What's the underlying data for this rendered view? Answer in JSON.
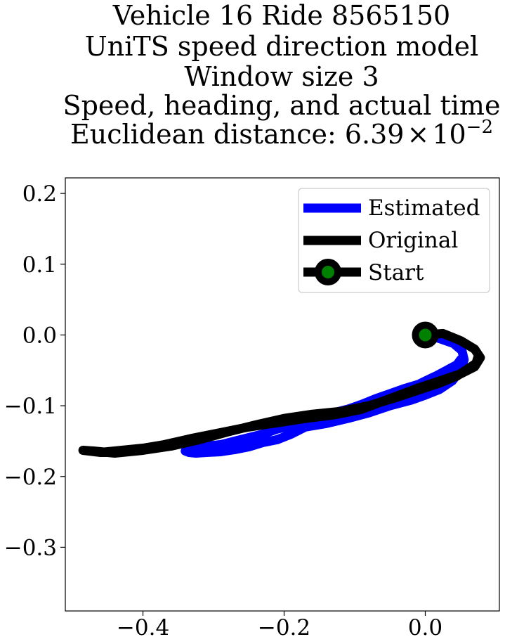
{
  "chart_data": {
    "type": "line",
    "title_lines": [
      "Vehicle 16 Ride 8565150",
      "UniTS speed direction model",
      "Window size 3",
      "Speed, heading, and actual time"
    ],
    "title_last_prefix": "Euclidean distance: ",
    "title_last_mantissa": "6.39",
    "title_last_times": "×",
    "title_last_base": "10",
    "title_last_exponent": "−2",
    "xlabel": "",
    "ylabel": "",
    "xlim": [
      -0.51,
      0.105
    ],
    "ylim": [
      -0.39,
      0.222
    ],
    "x_ticks": [
      -0.4,
      -0.2,
      0.0
    ],
    "x_tick_labels": [
      "−0.4",
      "−0.2",
      "0.0"
    ],
    "y_ticks": [
      0.2,
      0.1,
      0.0,
      -0.1,
      -0.2,
      -0.3
    ],
    "y_tick_labels": [
      "0.2",
      "0.1",
      "0.0",
      "−0.1",
      "−0.2",
      "−0.3"
    ],
    "grid": false,
    "legend_position": "top-right",
    "legend": [
      "Estimated",
      "Original",
      "Start"
    ],
    "series": [
      {
        "name": "Estimated",
        "color": "#0000ff",
        "x": [
          0.0,
          0.02,
          0.04,
          0.052,
          0.055,
          0.05,
          0.038,
          0.02,
          0.0,
          -0.02,
          -0.05,
          -0.08,
          -0.11,
          -0.14,
          -0.17,
          -0.19,
          -0.21,
          -0.23,
          -0.25,
          -0.27,
          -0.29,
          -0.31,
          -0.325,
          -0.335,
          -0.34,
          -0.33,
          -0.31,
          -0.29,
          -0.27,
          -0.25,
          -0.23,
          -0.21,
          -0.19,
          -0.17,
          -0.15,
          -0.13,
          -0.11,
          -0.09,
          -0.07,
          -0.05,
          -0.03,
          -0.01,
          0.0,
          0.015,
          0.03,
          0.045,
          0.05
        ],
        "y": [
          0.0,
          -0.005,
          -0.012,
          -0.022,
          -0.035,
          -0.05,
          -0.065,
          -0.077,
          -0.085,
          -0.092,
          -0.1,
          -0.11,
          -0.118,
          -0.125,
          -0.13,
          -0.14,
          -0.148,
          -0.152,
          -0.158,
          -0.162,
          -0.165,
          -0.166,
          -0.167,
          -0.166,
          -0.164,
          -0.16,
          -0.157,
          -0.155,
          -0.15,
          -0.145,
          -0.14,
          -0.133,
          -0.128,
          -0.122,
          -0.115,
          -0.11,
          -0.105,
          -0.098,
          -0.09,
          -0.083,
          -0.076,
          -0.07,
          -0.065,
          -0.058,
          -0.05,
          -0.042,
          -0.035
        ]
      },
      {
        "name": "Original",
        "color": "#000000",
        "x": [
          0.0,
          0.025,
          0.05,
          0.07,
          0.078,
          0.07,
          0.05,
          0.02,
          -0.01,
          -0.05,
          -0.09,
          -0.13,
          -0.17,
          -0.21,
          -0.25,
          -0.29,
          -0.33,
          -0.37,
          -0.4,
          -0.43,
          -0.46,
          -0.485,
          -0.47,
          -0.44,
          -0.4,
          -0.36,
          -0.32,
          -0.28,
          -0.24,
          -0.2,
          -0.16,
          -0.12,
          -0.08,
          -0.04,
          -0.01,
          0.02,
          0.045,
          0.06,
          0.072,
          0.075
        ],
        "y": [
          0.0,
          0.002,
          -0.008,
          -0.02,
          -0.032,
          -0.045,
          -0.055,
          -0.065,
          -0.075,
          -0.09,
          -0.105,
          -0.113,
          -0.118,
          -0.124,
          -0.13,
          -0.138,
          -0.146,
          -0.155,
          -0.16,
          -0.163,
          -0.166,
          -0.163,
          -0.164,
          -0.167,
          -0.163,
          -0.157,
          -0.148,
          -0.137,
          -0.127,
          -0.118,
          -0.112,
          -0.108,
          -0.1,
          -0.088,
          -0.078,
          -0.068,
          -0.058,
          -0.048,
          -0.04,
          -0.03
        ]
      }
    ],
    "start_point": {
      "name": "Start",
      "x": 0.0,
      "y": 0.0,
      "edge_color": "#000000",
      "face_color": "#008000"
    }
  }
}
